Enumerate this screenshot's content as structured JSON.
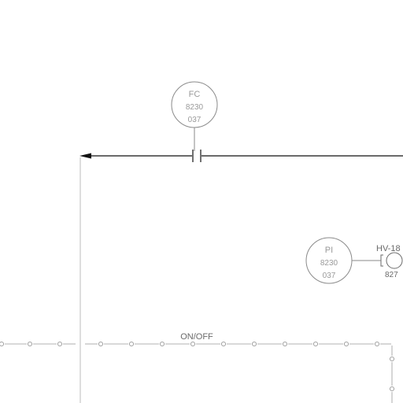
{
  "colors": {
    "background": "#ffffff",
    "line_dark": "#111111",
    "line_light": "#bdbdbd",
    "bubble_stroke": "#8a8a8a",
    "text_light": "#9a9a9a",
    "text_dark": "#6a6a6a"
  },
  "instruments": {
    "fc": {
      "tag": "FC",
      "loop": "8230",
      "number": "037"
    },
    "pi": {
      "tag": "PI",
      "loop": "8230",
      "number": "037"
    },
    "hv": {
      "tag": "HV-18",
      "number": "827"
    }
  },
  "signal_label": "ON/OFF"
}
